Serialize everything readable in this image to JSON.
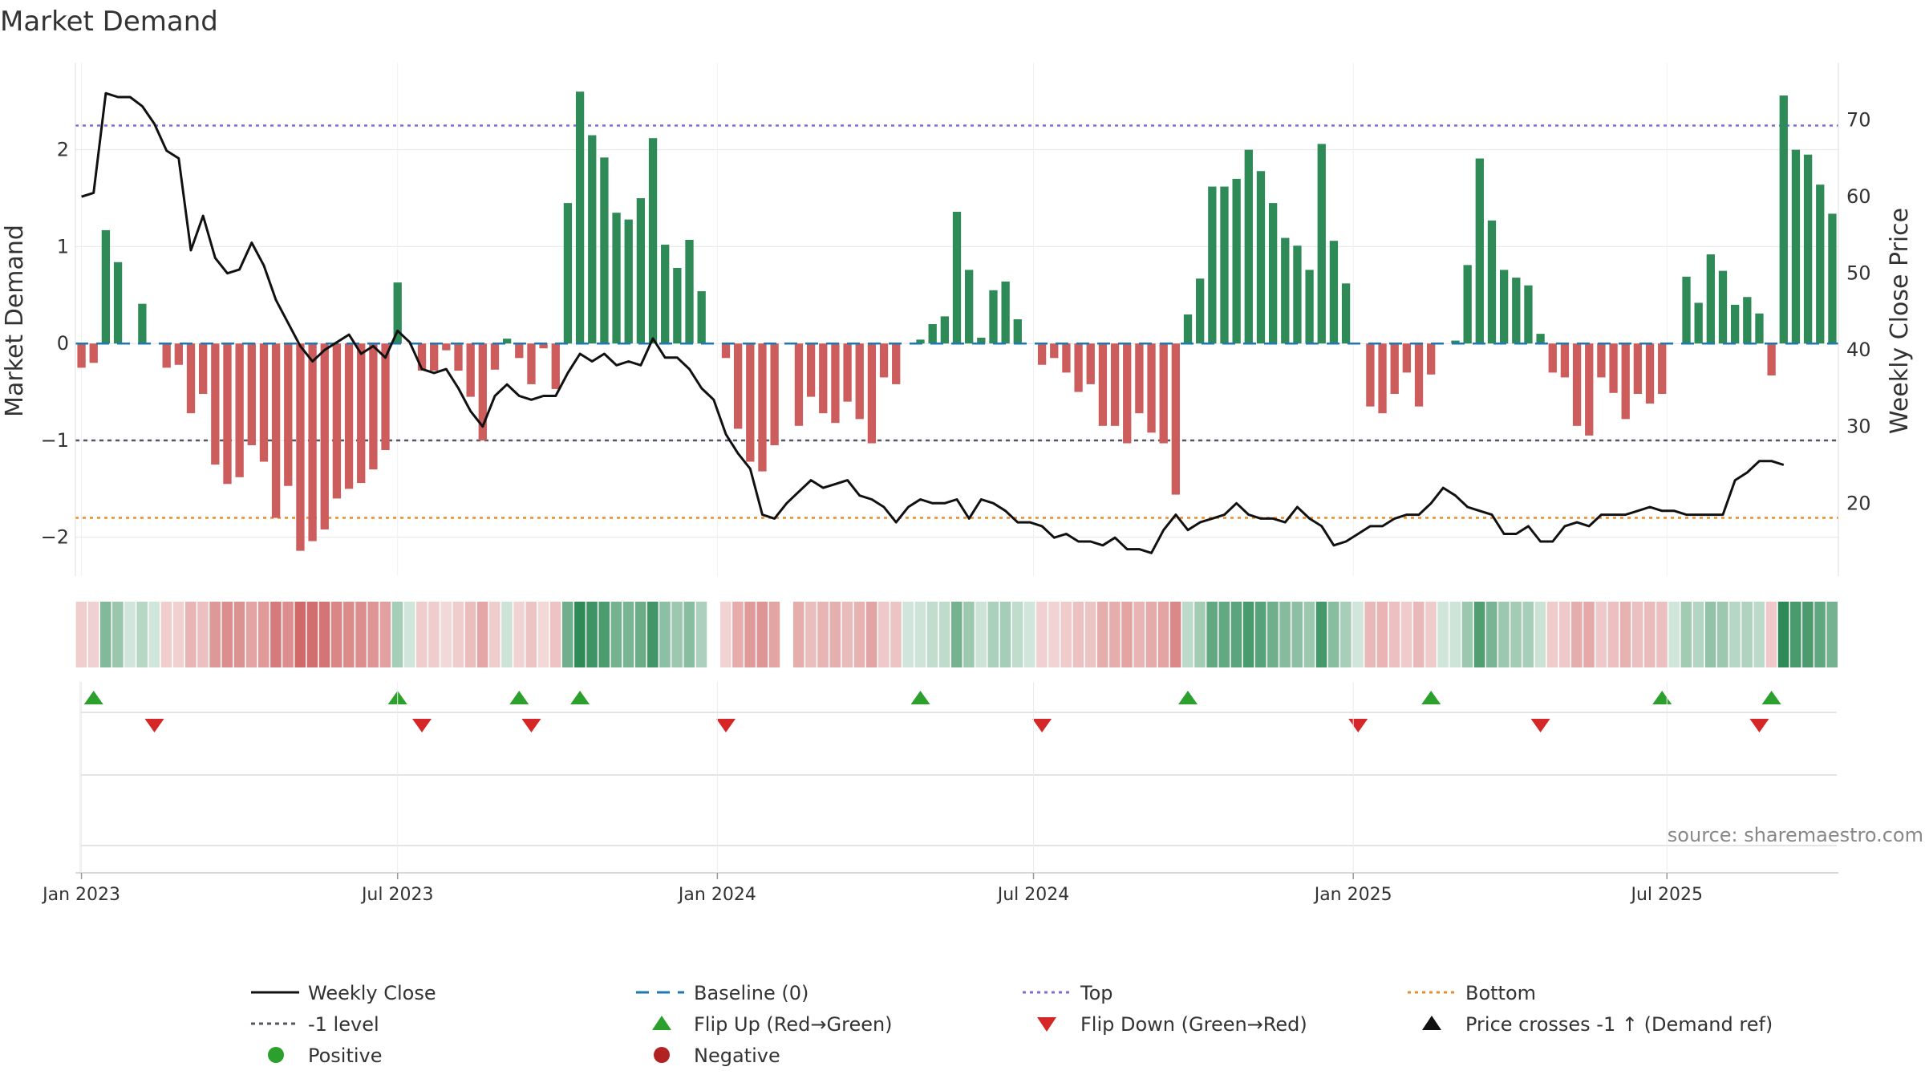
{
  "chart_data": {
    "type": "bar",
    "title": "Market Demand",
    "ylabel_left": "Market Demand",
    "ylabel_right": "Weekly Close Price",
    "ylim_left": [
      -2.4,
      2.9
    ],
    "ylim_right": [
      10.5,
      77.5
    ],
    "yticks_left": [
      {
        "v": 2,
        "label": "2"
      },
      {
        "v": 1,
        "label": "1"
      },
      {
        "v": 0,
        "label": "0"
      },
      {
        "v": -1,
        "label": "−1"
      },
      {
        "v": -2,
        "label": "−2"
      }
    ],
    "yticks_right": [
      {
        "v": 70,
        "label": "70"
      },
      {
        "v": 60,
        "label": "60"
      },
      {
        "v": 50,
        "label": "50"
      },
      {
        "v": 40,
        "label": "40"
      },
      {
        "v": 30,
        "label": "30"
      },
      {
        "v": 20,
        "label": "20"
      }
    ],
    "xticks": [
      {
        "i": 0,
        "label": "Jan 2023"
      },
      {
        "i": 26,
        "label": "Jul 2023"
      },
      {
        "i": 52.3,
        "label": "Jan 2024"
      },
      {
        "i": 78.3,
        "label": "Jul 2024"
      },
      {
        "i": 104.6,
        "label": "Jan 2025"
      },
      {
        "i": 130.4,
        "label": "Jul 2025"
      }
    ],
    "reference_lines": {
      "top": 2.25,
      "minus_one": -1.0,
      "bottom": -1.8,
      "baseline": 0
    },
    "demand": [
      -0.25,
      -0.2,
      1.17,
      0.84,
      0,
      0.41,
      0,
      -0.25,
      -0.22,
      -0.72,
      -0.52,
      -1.25,
      -1.45,
      -1.38,
      -1.05,
      -1.22,
      -1.8,
      -1.47,
      -2.14,
      -2.04,
      -1.92,
      -1.6,
      -1.5,
      -1.44,
      -1.3,
      -1.1,
      0.63,
      0,
      -0.28,
      -0.28,
      -0.07,
      -0.28,
      -0.55,
      -1.0,
      -0.27,
      0.05,
      -0.15,
      -0.42,
      -0.05,
      -0.47,
      1.45,
      2.6,
      2.15,
      1.92,
      1.35,
      1.28,
      1.5,
      2.12,
      1.02,
      0.78,
      1.07,
      0.54,
      0,
      -0.15,
      -0.88,
      -1.22,
      -1.32,
      -1.05,
      0,
      -0.85,
      -0.55,
      -0.72,
      -0.82,
      -0.6,
      -0.78,
      -1.03,
      -0.35,
      -0.42,
      0,
      0.04,
      0.2,
      0.28,
      1.36,
      0.76,
      0.06,
      0.55,
      0.64,
      0.25,
      0,
      -0.22,
      -0.15,
      -0.3,
      -0.5,
      -0.42,
      -0.85,
      -0.85,
      -1.03,
      -0.72,
      -0.92,
      -1.03,
      -1.56,
      0.3,
      0.67,
      1.62,
      1.62,
      1.7,
      2.0,
      1.78,
      1.45,
      1.09,
      1.01,
      0.76,
      2.06,
      1.06,
      0.62,
      0,
      -0.65,
      -0.72,
      -0.52,
      -0.3,
      -0.65,
      -0.32,
      0,
      0.03,
      0.81,
      1.91,
      1.27,
      0.76,
      0.68,
      0.6,
      0.1,
      -0.3,
      -0.35,
      -0.85,
      -0.95,
      -0.35,
      -0.51,
      -0.78,
      -0.52,
      -0.62,
      -0.52,
      0,
      0.69,
      0.42,
      0.92,
      0.75,
      0.4,
      0.48,
      0.31,
      -0.33,
      2.56,
      2.0,
      1.95,
      1.64,
      1.34
    ],
    "close": [
      60.0,
      60.5,
      73.5,
      73.0,
      73.0,
      71.8,
      69.5,
      66.0,
      65.0,
      53.0,
      57.5,
      52.0,
      50.0,
      50.5,
      54.0,
      51.0,
      46.5,
      43.5,
      40.5,
      38.5,
      40.0,
      41.0,
      42.0,
      39.5,
      40.5,
      39.0,
      42.5,
      41.0,
      37.5,
      37.0,
      37.5,
      35.0,
      32.0,
      30.0,
      34.0,
      35.5,
      34.0,
      33.5,
      34.0,
      34.0,
      37.0,
      39.5,
      38.5,
      39.5,
      38.0,
      38.5,
      38.0,
      41.5,
      39.0,
      39.0,
      37.5,
      35.0,
      33.5,
      29.0,
      26.5,
      24.5,
      18.5,
      18.0,
      20.0,
      21.5,
      23.0,
      22.0,
      22.5,
      23.0,
      21.0,
      20.5,
      19.5,
      17.5,
      19.5,
      20.5,
      20.0,
      20.0,
      20.5,
      18.0,
      20.5,
      20.0,
      19.0,
      17.5,
      17.5,
      17.0,
      15.5,
      16.0,
      15.0,
      15.0,
      14.5,
      15.5,
      14.0,
      14.0,
      13.5,
      16.5,
      18.5,
      16.5,
      17.5,
      18.0,
      18.5,
      20.0,
      18.5,
      18.0,
      18.0,
      17.5,
      19.5,
      18.0,
      17.0,
      14.5,
      15.0,
      16.0,
      17.0,
      17.0,
      18.0,
      18.5,
      18.5,
      20.0,
      22.0,
      21.0,
      19.5,
      19.0,
      18.5,
      16.0,
      16.0,
      17.0,
      15.0,
      15.0,
      17.0,
      17.5,
      17.0,
      18.5,
      18.5,
      18.5,
      19.0,
      19.5,
      19.0,
      19.0,
      18.5,
      18.5,
      18.5,
      18.5,
      23.0,
      24.0,
      25.5,
      25.5,
      25.0
    ],
    "flip_up_weeks": [
      1,
      26,
      36,
      41,
      69,
      91,
      111,
      130,
      139
    ],
    "flip_down_weeks": [
      6,
      28,
      37,
      53,
      79,
      105,
      120,
      138
    ],
    "source": "source: sharemaestro.com"
  },
  "colors": {
    "positive": "#2e8b57",
    "negative": "#cd5c5c",
    "line": "#111111",
    "top": "#7b6fd6",
    "minus_one": "#555566",
    "bottom": "#f08c28",
    "baseline": "#1f77b4",
    "flip_up": "#2ca02c",
    "flip_down": "#d62728",
    "grid": "#e6e6e6"
  },
  "legend": {
    "weekly_close": "Weekly Close",
    "baseline": "Baseline (0)",
    "top": "Top",
    "bottom": "Bottom",
    "minus_one": "-1 level",
    "flip_up": "Flip Up (Red→Green)",
    "flip_down": "Flip Down (Green→Red)",
    "price_cross": "Price crosses -1 ↑ (Demand ref)",
    "positive": "Positive",
    "negative": "Negative"
  }
}
